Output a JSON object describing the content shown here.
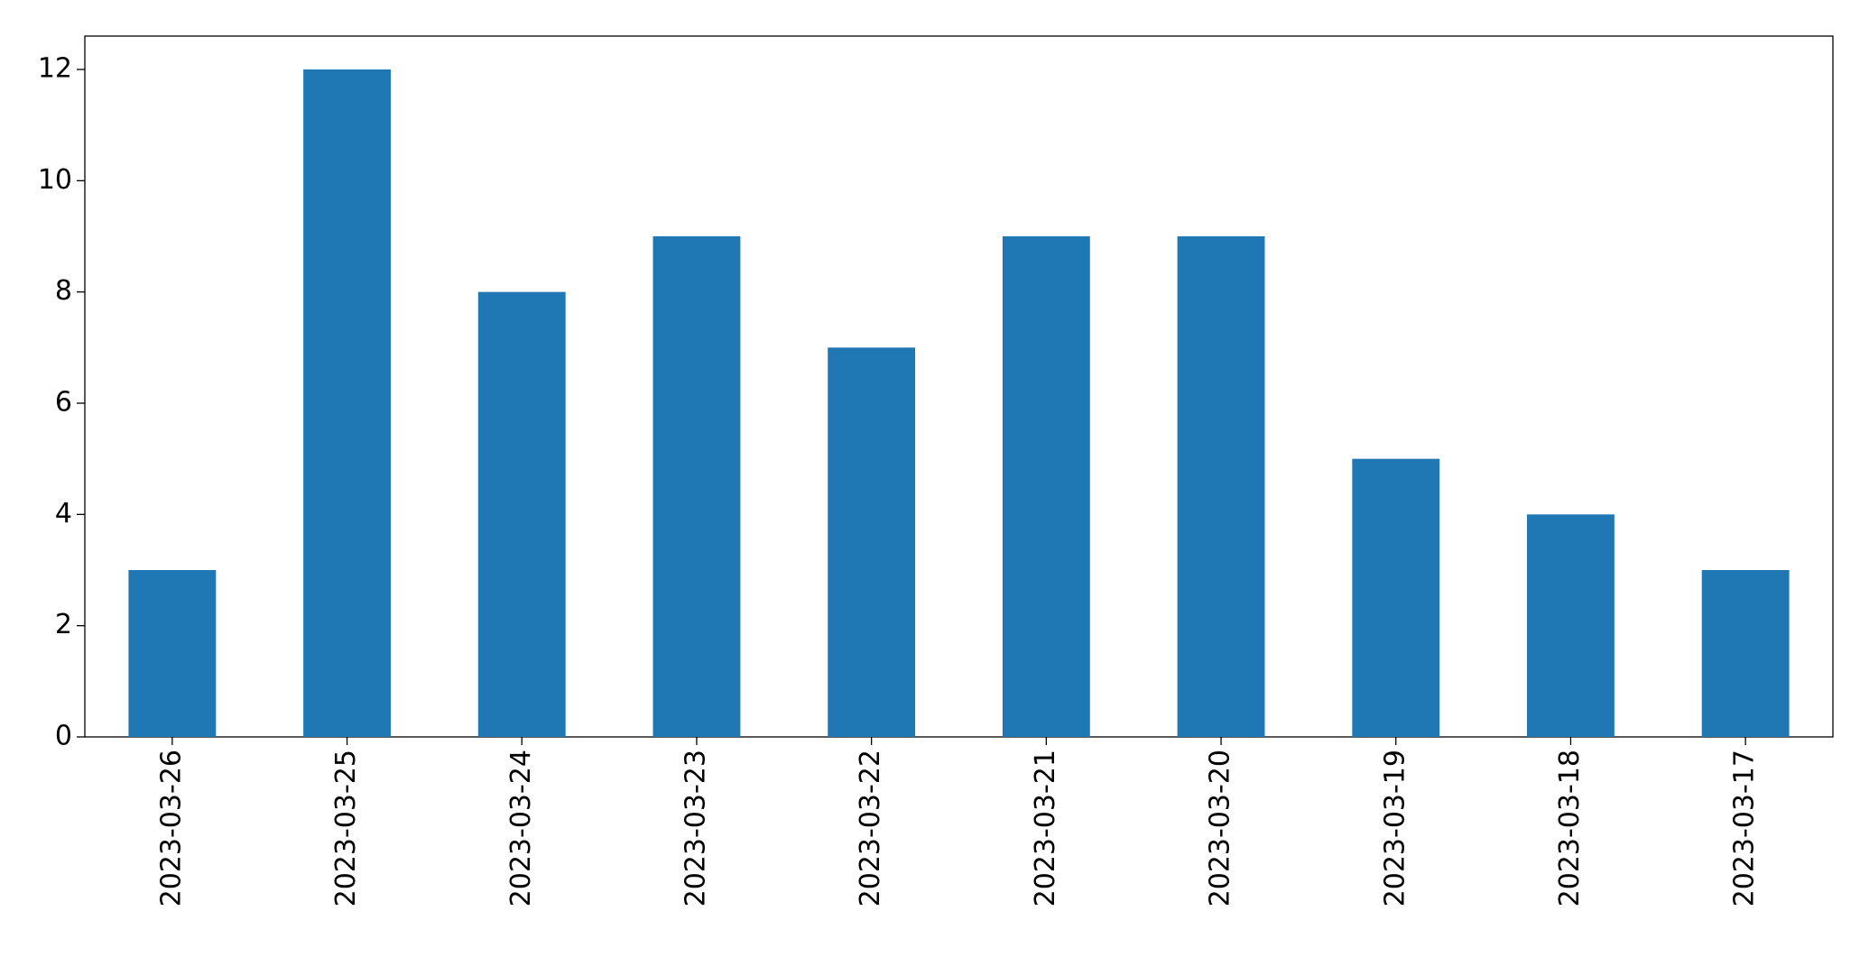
{
  "chart_data": {
    "type": "bar",
    "categories": [
      "2023-03-26",
      "2023-03-25",
      "2023-03-24",
      "2023-03-23",
      "2023-03-22",
      "2023-03-21",
      "2023-03-20",
      "2023-03-19",
      "2023-03-18",
      "2023-03-17"
    ],
    "values": [
      3,
      12,
      8,
      9,
      7,
      9,
      9,
      5,
      4,
      3
    ],
    "color": "#1f77b4",
    "ylim": [
      0,
      12.6
    ],
    "yticks": [
      0,
      2,
      4,
      6,
      8,
      10,
      12
    ],
    "grid": false
  }
}
